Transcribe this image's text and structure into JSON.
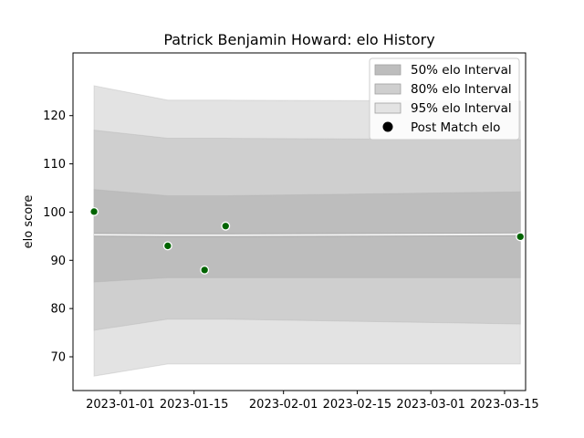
{
  "chart_data": {
    "type": "line",
    "title": "Patrick Benjamin Howard: elo History",
    "xlabel": "",
    "ylabel": "elo score",
    "x_ticks": [
      "2023-01-01",
      "2023-01-15",
      "2023-02-01",
      "2023-02-15",
      "2023-03-01",
      "2023-03-15"
    ],
    "y_ticks": [
      70,
      80,
      90,
      100,
      110,
      120
    ],
    "ylim": [
      63,
      133
    ],
    "xlim": [
      "2022-12-23",
      "2023-03-19"
    ],
    "grid": false,
    "legend_position": "top-right",
    "dates": [
      "2022-12-27",
      "2023-01-10",
      "2023-01-21",
      "2023-03-18"
    ],
    "series": [
      {
        "name": "95% elo Interval",
        "kind": "band",
        "color": "#e3e3e3",
        "lower": [
          66.0,
          68.5,
          68.5,
          68.5
        ],
        "upper": [
          126.2,
          123.2,
          123.2,
          123.0
        ]
      },
      {
        "name": "80% elo Interval",
        "kind": "band",
        "color": "#cfcfcf",
        "lower": [
          75.5,
          77.8,
          77.8,
          76.8
        ],
        "upper": [
          117.0,
          115.3,
          115.3,
          115.0
        ]
      },
      {
        "name": "50% elo Interval",
        "kind": "band",
        "color": "#bdbdbd",
        "lower": [
          85.5,
          86.4,
          86.4,
          86.4
        ],
        "upper": [
          104.7,
          103.4,
          103.4,
          104.2
        ]
      },
      {
        "name": "mean",
        "kind": "line",
        "color": "#f2f2f2",
        "values": [
          95.3,
          95.2,
          95.2,
          95.4
        ]
      },
      {
        "name": "Post Match elo",
        "kind": "scatter",
        "color": "#006400",
        "x": [
          "2022-12-27",
          "2023-01-10",
          "2023-01-17",
          "2023-01-21",
          "2023-03-18"
        ],
        "y": [
          100.1,
          93.0,
          88.0,
          97.1,
          94.9
        ]
      }
    ],
    "legend": [
      "50% elo Interval",
      "80% elo Interval",
      "95% elo Interval",
      "Post Match elo"
    ]
  }
}
